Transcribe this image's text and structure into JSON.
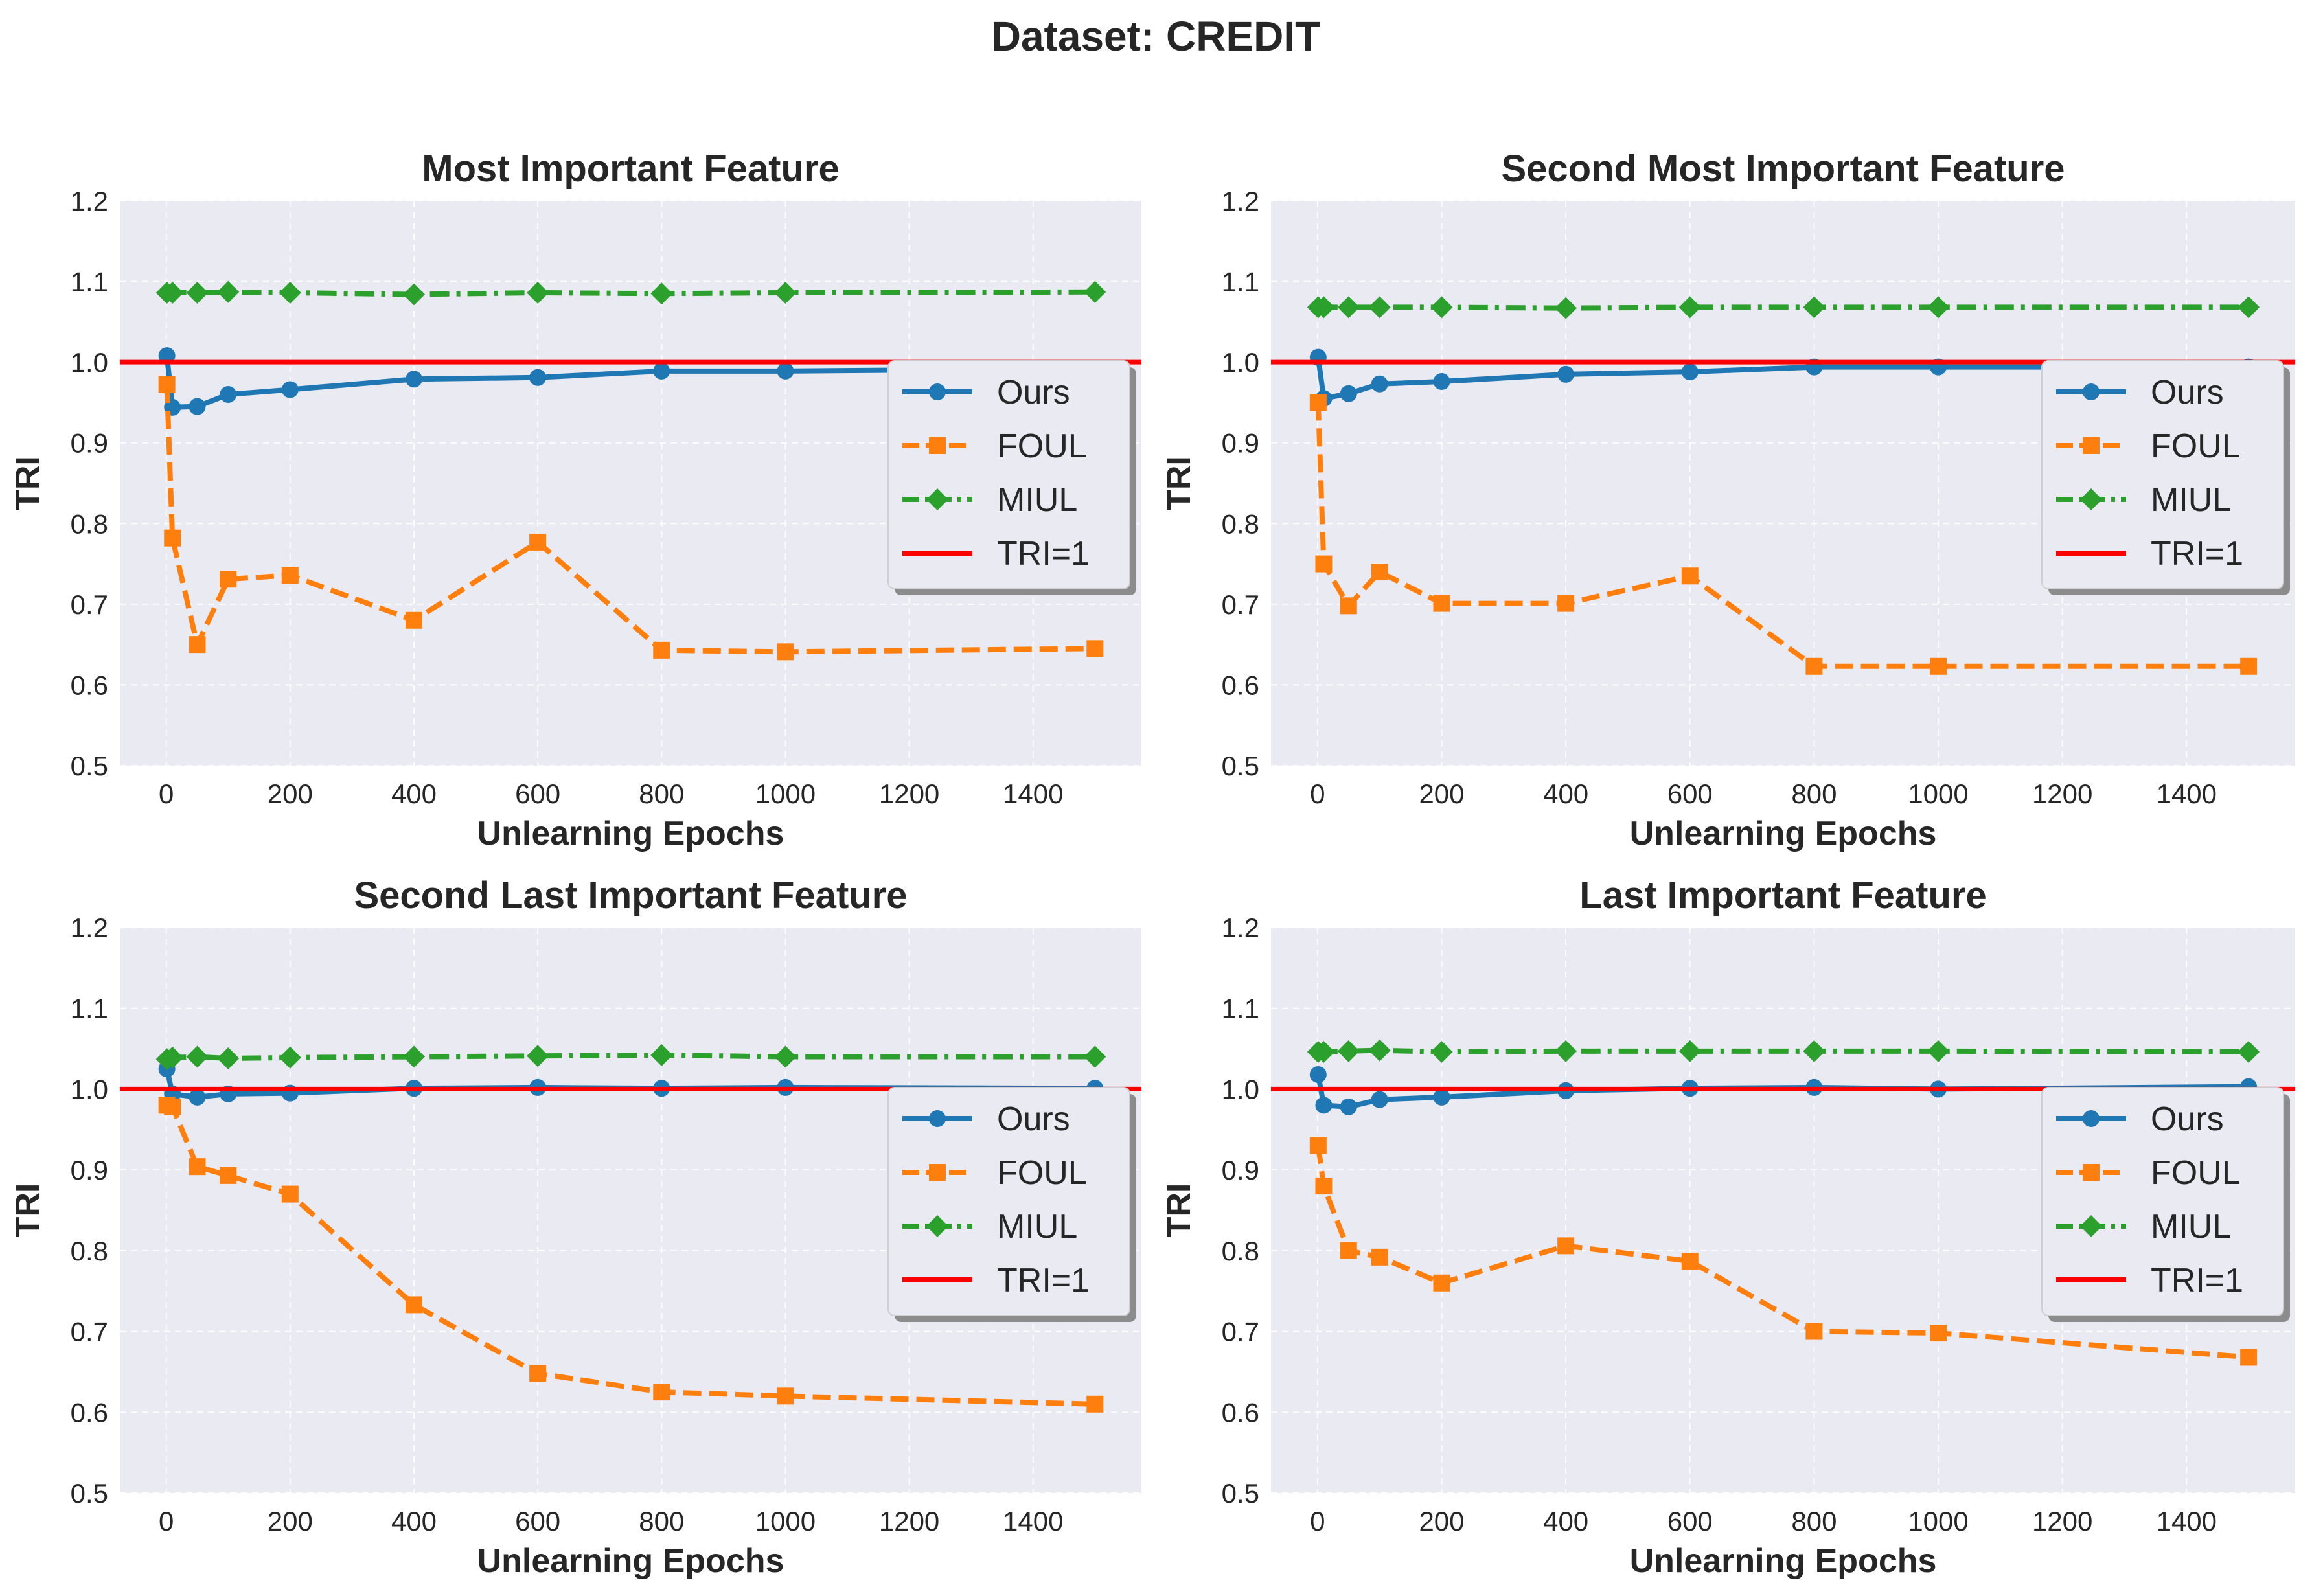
{
  "suptitle": "Dataset: CREDIT",
  "colors": {
    "background": "#eaeaf2",
    "ours": "#1f77b4",
    "foul": "#ff7f0e",
    "miul": "#2ca02c",
    "reference": "#ff0000"
  },
  "chart_data": [
    {
      "type": "line",
      "title": "Most Important Feature",
      "xlabel": "Unlearning Epochs",
      "ylabel": "TRI",
      "xlim": [
        -75,
        1575
      ],
      "ylim": [
        0.5,
        1.2
      ],
      "xticks": [
        0,
        200,
        400,
        600,
        800,
        1000,
        1200,
        1400
      ],
      "yticks": [
        0.5,
        0.6,
        0.7,
        0.8,
        0.9,
        1.0,
        1.1,
        1.2
      ],
      "grid": true,
      "legend_position": "right",
      "x": [
        1,
        10,
        50,
        100,
        200,
        400,
        600,
        800,
        1000,
        1500
      ],
      "series": [
        {
          "name": "Ours",
          "key": "ours",
          "values": [
            1.008,
            0.944,
            0.945,
            0.96,
            0.966,
            0.979,
            0.981,
            0.989,
            0.989,
            0.992
          ]
        },
        {
          "name": "FOUL",
          "key": "foul",
          "values": [
            0.972,
            0.782,
            0.65,
            0.731,
            0.736,
            0.68,
            0.777,
            0.643,
            0.641,
            0.645
          ]
        },
        {
          "name": "MIUL",
          "key": "miul",
          "values": [
            1.086,
            1.086,
            1.086,
            1.087,
            1.086,
            1.084,
            1.086,
            1.085,
            1.086,
            1.087
          ]
        }
      ],
      "reference": {
        "name": "TRI=1",
        "y": 1.0
      }
    },
    {
      "type": "line",
      "title": "Second Most Important Feature",
      "xlabel": "Unlearning Epochs",
      "ylabel": "TRI",
      "xlim": [
        -75,
        1575
      ],
      "ylim": [
        0.5,
        1.2
      ],
      "xticks": [
        0,
        200,
        400,
        600,
        800,
        1000,
        1200,
        1400
      ],
      "yticks": [
        0.5,
        0.6,
        0.7,
        0.8,
        0.9,
        1.0,
        1.1,
        1.2
      ],
      "grid": true,
      "legend_position": "right",
      "x": [
        1,
        10,
        50,
        100,
        200,
        400,
        600,
        800,
        1000,
        1500
      ],
      "series": [
        {
          "name": "Ours",
          "key": "ours",
          "values": [
            1.006,
            0.955,
            0.961,
            0.973,
            0.976,
            0.985,
            0.988,
            0.994,
            0.994,
            0.994
          ]
        },
        {
          "name": "FOUL",
          "key": "foul",
          "values": [
            0.95,
            0.75,
            0.698,
            0.74,
            0.701,
            0.701,
            0.735,
            0.623,
            0.623,
            0.623
          ]
        },
        {
          "name": "MIUL",
          "key": "miul",
          "values": [
            1.068,
            1.068,
            1.068,
            1.068,
            1.068,
            1.067,
            1.068,
            1.068,
            1.068,
            1.068
          ]
        }
      ],
      "reference": {
        "name": "TRI=1",
        "y": 1.0
      }
    },
    {
      "type": "line",
      "title": "Second Last Important Feature",
      "xlabel": "Unlearning Epochs",
      "ylabel": "TRI",
      "xlim": [
        -75,
        1575
      ],
      "ylim": [
        0.5,
        1.2
      ],
      "xticks": [
        0,
        200,
        400,
        600,
        800,
        1000,
        1200,
        1400
      ],
      "yticks": [
        0.5,
        0.6,
        0.7,
        0.8,
        0.9,
        1.0,
        1.1,
        1.2
      ],
      "grid": true,
      "legend_position": "right",
      "x": [
        1,
        10,
        50,
        100,
        200,
        400,
        600,
        800,
        1000,
        1500
      ],
      "series": [
        {
          "name": "Ours",
          "key": "ours",
          "values": [
            1.025,
            0.994,
            0.99,
            0.994,
            0.995,
            1.001,
            1.002,
            1.001,
            1.002,
            1.001
          ]
        },
        {
          "name": "FOUL",
          "key": "foul",
          "values": [
            0.98,
            0.978,
            0.904,
            0.893,
            0.87,
            0.733,
            0.648,
            0.625,
            0.62,
            0.61
          ]
        },
        {
          "name": "MIUL",
          "key": "miul",
          "values": [
            1.037,
            1.039,
            1.04,
            1.038,
            1.039,
            1.04,
            1.041,
            1.042,
            1.04,
            1.04
          ]
        }
      ],
      "reference": {
        "name": "TRI=1",
        "y": 1.0
      }
    },
    {
      "type": "line",
      "title": "Last Important Feature",
      "xlabel": "Unlearning Epochs",
      "ylabel": "TRI",
      "xlim": [
        -75,
        1575
      ],
      "ylim": [
        0.5,
        1.2
      ],
      "xticks": [
        0,
        200,
        400,
        600,
        800,
        1000,
        1200,
        1400
      ],
      "yticks": [
        0.5,
        0.6,
        0.7,
        0.8,
        0.9,
        1.0,
        1.1,
        1.2
      ],
      "grid": true,
      "legend_position": "right",
      "x": [
        1,
        10,
        50,
        100,
        200,
        400,
        600,
        800,
        1000,
        1500
      ],
      "series": [
        {
          "name": "Ours",
          "key": "ours",
          "values": [
            1.018,
            0.98,
            0.978,
            0.987,
            0.99,
            0.998,
            1.001,
            1.002,
            1.0,
            1.003
          ]
        },
        {
          "name": "FOUL",
          "key": "foul",
          "values": [
            0.93,
            0.88,
            0.8,
            0.792,
            0.76,
            0.806,
            0.787,
            0.7,
            0.698,
            0.668
          ]
        },
        {
          "name": "MIUL",
          "key": "miul",
          "values": [
            1.046,
            1.046,
            1.047,
            1.048,
            1.046,
            1.047,
            1.047,
            1.047,
            1.047,
            1.046
          ]
        }
      ],
      "reference": {
        "name": "TRI=1",
        "y": 1.0
      }
    }
  ]
}
